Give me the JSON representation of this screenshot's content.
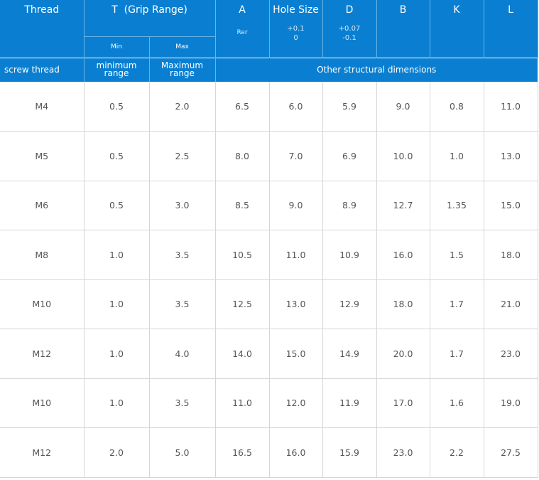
{
  "header": {
    "thread": "Thread",
    "t_group": "T  (Grip Range)",
    "min": "Min",
    "max": "Max",
    "a": "A",
    "a_sub": "Rer",
    "hole_size": "Hole Size",
    "hole_tol_upper": "+0.1",
    "hole_tol_lower": "0",
    "d": "D",
    "d_tol_upper": "+0.07",
    "d_tol_lower": "-0.1",
    "b": "B",
    "k": "K",
    "l": "L"
  },
  "subheader": {
    "screw_thread": "screw thread",
    "min_range_1": "minimum",
    "min_range_2": "range",
    "max_range_1": "Maximum",
    "max_range_2": "range",
    "other": "Other structural dimensions"
  },
  "rows": [
    [
      "M4",
      "0.5",
      "2.0",
      "6.5",
      "6.0",
      "5.9",
      "9.0",
      "0.8",
      "11.0"
    ],
    [
      "M5",
      "0.5",
      "2.5",
      "8.0",
      "7.0",
      "6.9",
      "10.0",
      "1.0",
      "13.0"
    ],
    [
      "M6",
      "0.5",
      "3.0",
      "8.5",
      "9.0",
      "8.9",
      "12.7",
      "1.35",
      "15.0"
    ],
    [
      "M8",
      "1.0",
      "3.5",
      "10.5",
      "11.0",
      "10.9",
      "16.0",
      "1.5",
      "18.0"
    ],
    [
      "M10",
      "1.0",
      "3.5",
      "12.5",
      "13.0",
      "12.9",
      "18.0",
      "1.7",
      "21.0"
    ],
    [
      "M12",
      "1.0",
      "4.0",
      "14.0",
      "15.0",
      "14.9",
      "20.0",
      "1.7",
      "23.0"
    ],
    [
      "M10",
      "1.0",
      "3.5",
      "11.0",
      "12.0",
      "11.9",
      "17.0",
      "1.6",
      "19.0"
    ],
    [
      "M12",
      "2.0",
      "5.0",
      "16.5",
      "16.0",
      "15.9",
      "23.0",
      "2.2",
      "27.5"
    ]
  ],
  "colors": {
    "header_bg": "#0a7fd1",
    "header_text": "#ffffff",
    "grid_line": "#d6d6d6",
    "body_text": "#555555"
  }
}
